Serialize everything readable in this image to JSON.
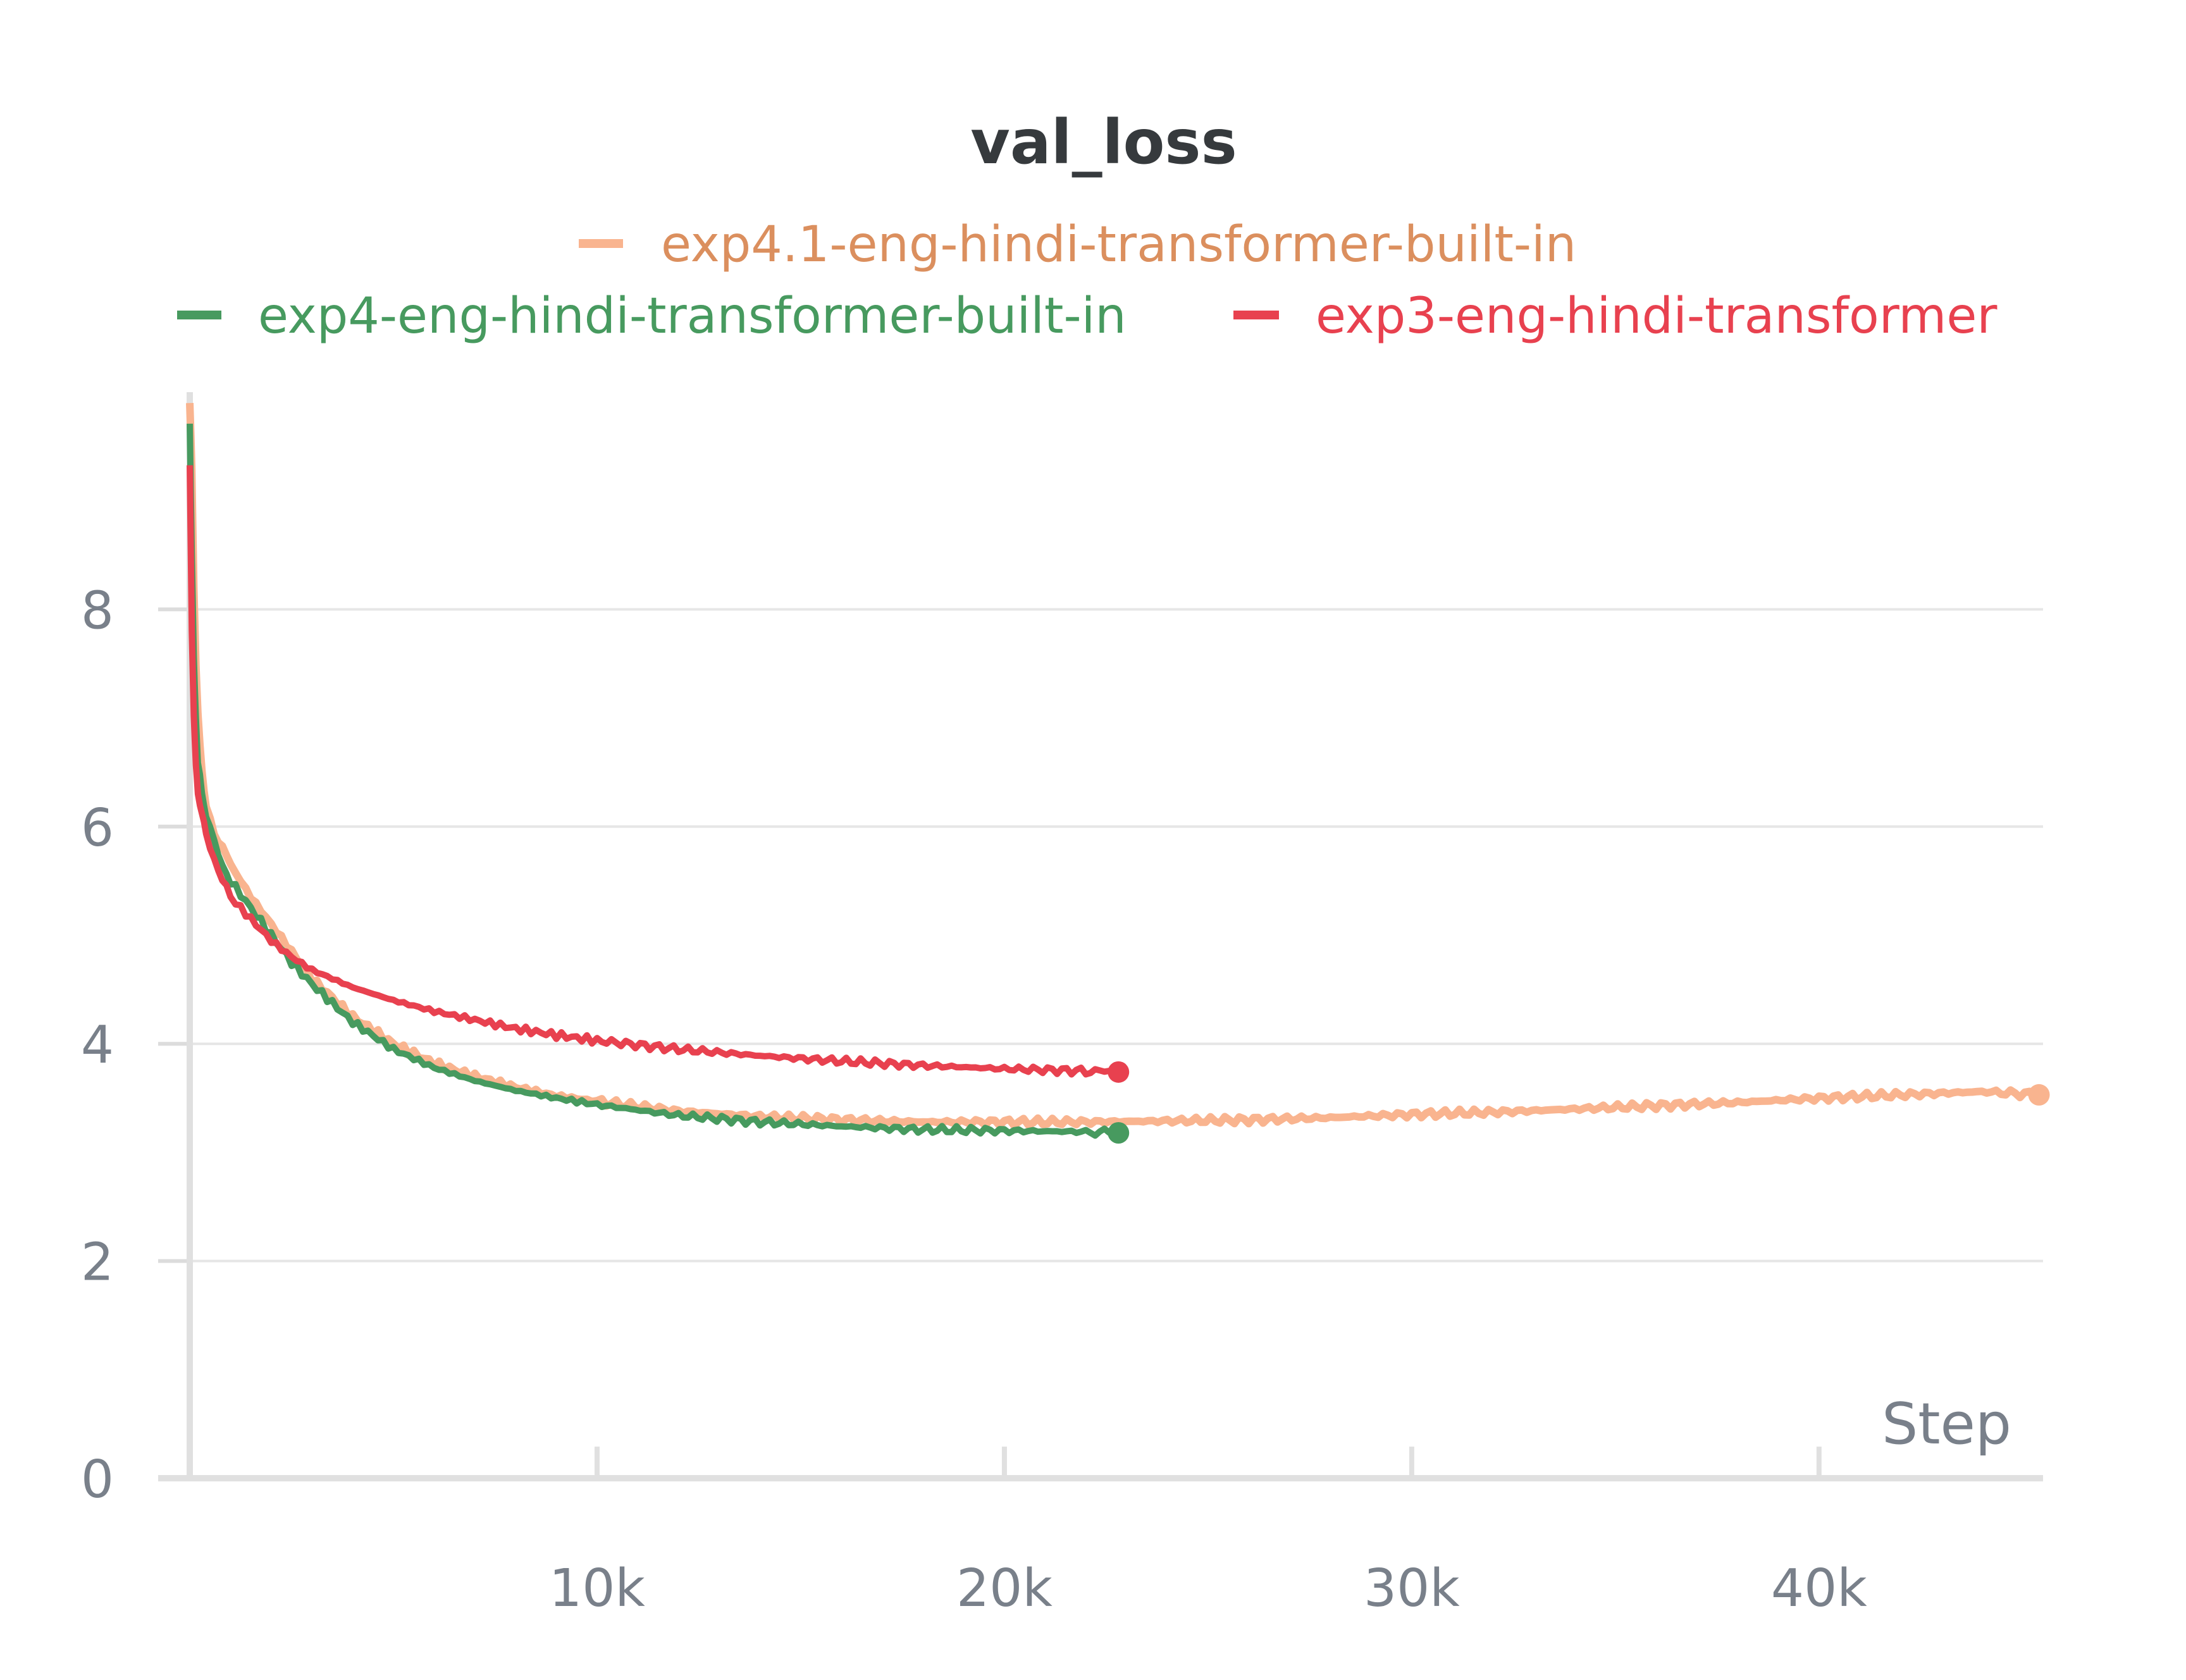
{
  "chart_data": {
    "type": "line",
    "title": "val_loss",
    "xlabel": "Step",
    "ylabel": "",
    "xlim": [
      0,
      45500
    ],
    "ylim": [
      0,
      10
    ],
    "x_ticks": [
      10000,
      20000,
      30000,
      40000
    ],
    "x_tick_labels": [
      "10k",
      "20k",
      "30k",
      "40k"
    ],
    "y_ticks": [
      0,
      2,
      4,
      6,
      8
    ],
    "y_tick_labels": [
      "0",
      "2",
      "4",
      "6",
      "8"
    ],
    "grid": true,
    "legend_position": "top-center",
    "series": [
      {
        "name": "exp4.1-eng-hindi-transformer-built-in",
        "color": "#f9b48f",
        "label_color": "#db8f5e",
        "x": [
          0,
          50,
          100,
          150,
          200,
          300,
          400,
          600,
          800,
          1000,
          1500,
          2000,
          2500,
          3000,
          4000,
          5000,
          6000,
          7000,
          8000,
          9000,
          10000,
          12000,
          14000,
          16000,
          18000,
          20000,
          22000,
          24000,
          26000,
          28000,
          30000,
          32000,
          34000,
          36000,
          38000,
          40000,
          42000,
          44000,
          45400
        ],
        "y": [
          9.9,
          9.3,
          8.2,
          7.5,
          7.0,
          6.5,
          6.2,
          5.95,
          5.8,
          5.65,
          5.35,
          5.1,
          4.85,
          4.6,
          4.25,
          4.0,
          3.82,
          3.7,
          3.6,
          3.52,
          3.47,
          3.38,
          3.33,
          3.3,
          3.28,
          3.28,
          3.28,
          3.29,
          3.3,
          3.32,
          3.35,
          3.37,
          3.4,
          3.43,
          3.46,
          3.5,
          3.53,
          3.56,
          3.53
        ]
      },
      {
        "name": "exp4-eng-hindi-transformer-built-in",
        "color": "#479a5f",
        "label_color": "#479a5f",
        "x": [
          0,
          50,
          100,
          150,
          200,
          300,
          400,
          600,
          800,
          1000,
          1500,
          2000,
          2500,
          3000,
          4000,
          5000,
          6000,
          7000,
          8000,
          9000,
          10000,
          12000,
          14000,
          16000,
          18000,
          20000,
          22000,
          22800
        ],
        "y": [
          9.7,
          8.5,
          7.6,
          7.0,
          6.6,
          6.3,
          6.1,
          5.85,
          5.65,
          5.5,
          5.25,
          5.0,
          4.75,
          4.55,
          4.2,
          3.95,
          3.78,
          3.66,
          3.57,
          3.5,
          3.44,
          3.34,
          3.28,
          3.24,
          3.21,
          3.2,
          3.19,
          3.18
        ]
      },
      {
        "name": "exp3-eng-hindi-transformer",
        "color": "#e8414f",
        "label_color": "#e8414f",
        "x": [
          0,
          50,
          100,
          150,
          200,
          300,
          400,
          600,
          800,
          1000,
          1500,
          2000,
          2500,
          3000,
          4000,
          5000,
          6000,
          7000,
          8000,
          9000,
          10000,
          12000,
          14000,
          16000,
          18000,
          20000,
          22000,
          22800
        ],
        "y": [
          9.3,
          7.8,
          7.0,
          6.6,
          6.3,
          6.1,
          5.95,
          5.7,
          5.5,
          5.35,
          5.15,
          4.95,
          4.8,
          4.68,
          4.52,
          4.4,
          4.3,
          4.22,
          4.14,
          4.08,
          4.03,
          3.95,
          3.89,
          3.84,
          3.8,
          3.77,
          3.75,
          3.74
        ]
      }
    ]
  }
}
